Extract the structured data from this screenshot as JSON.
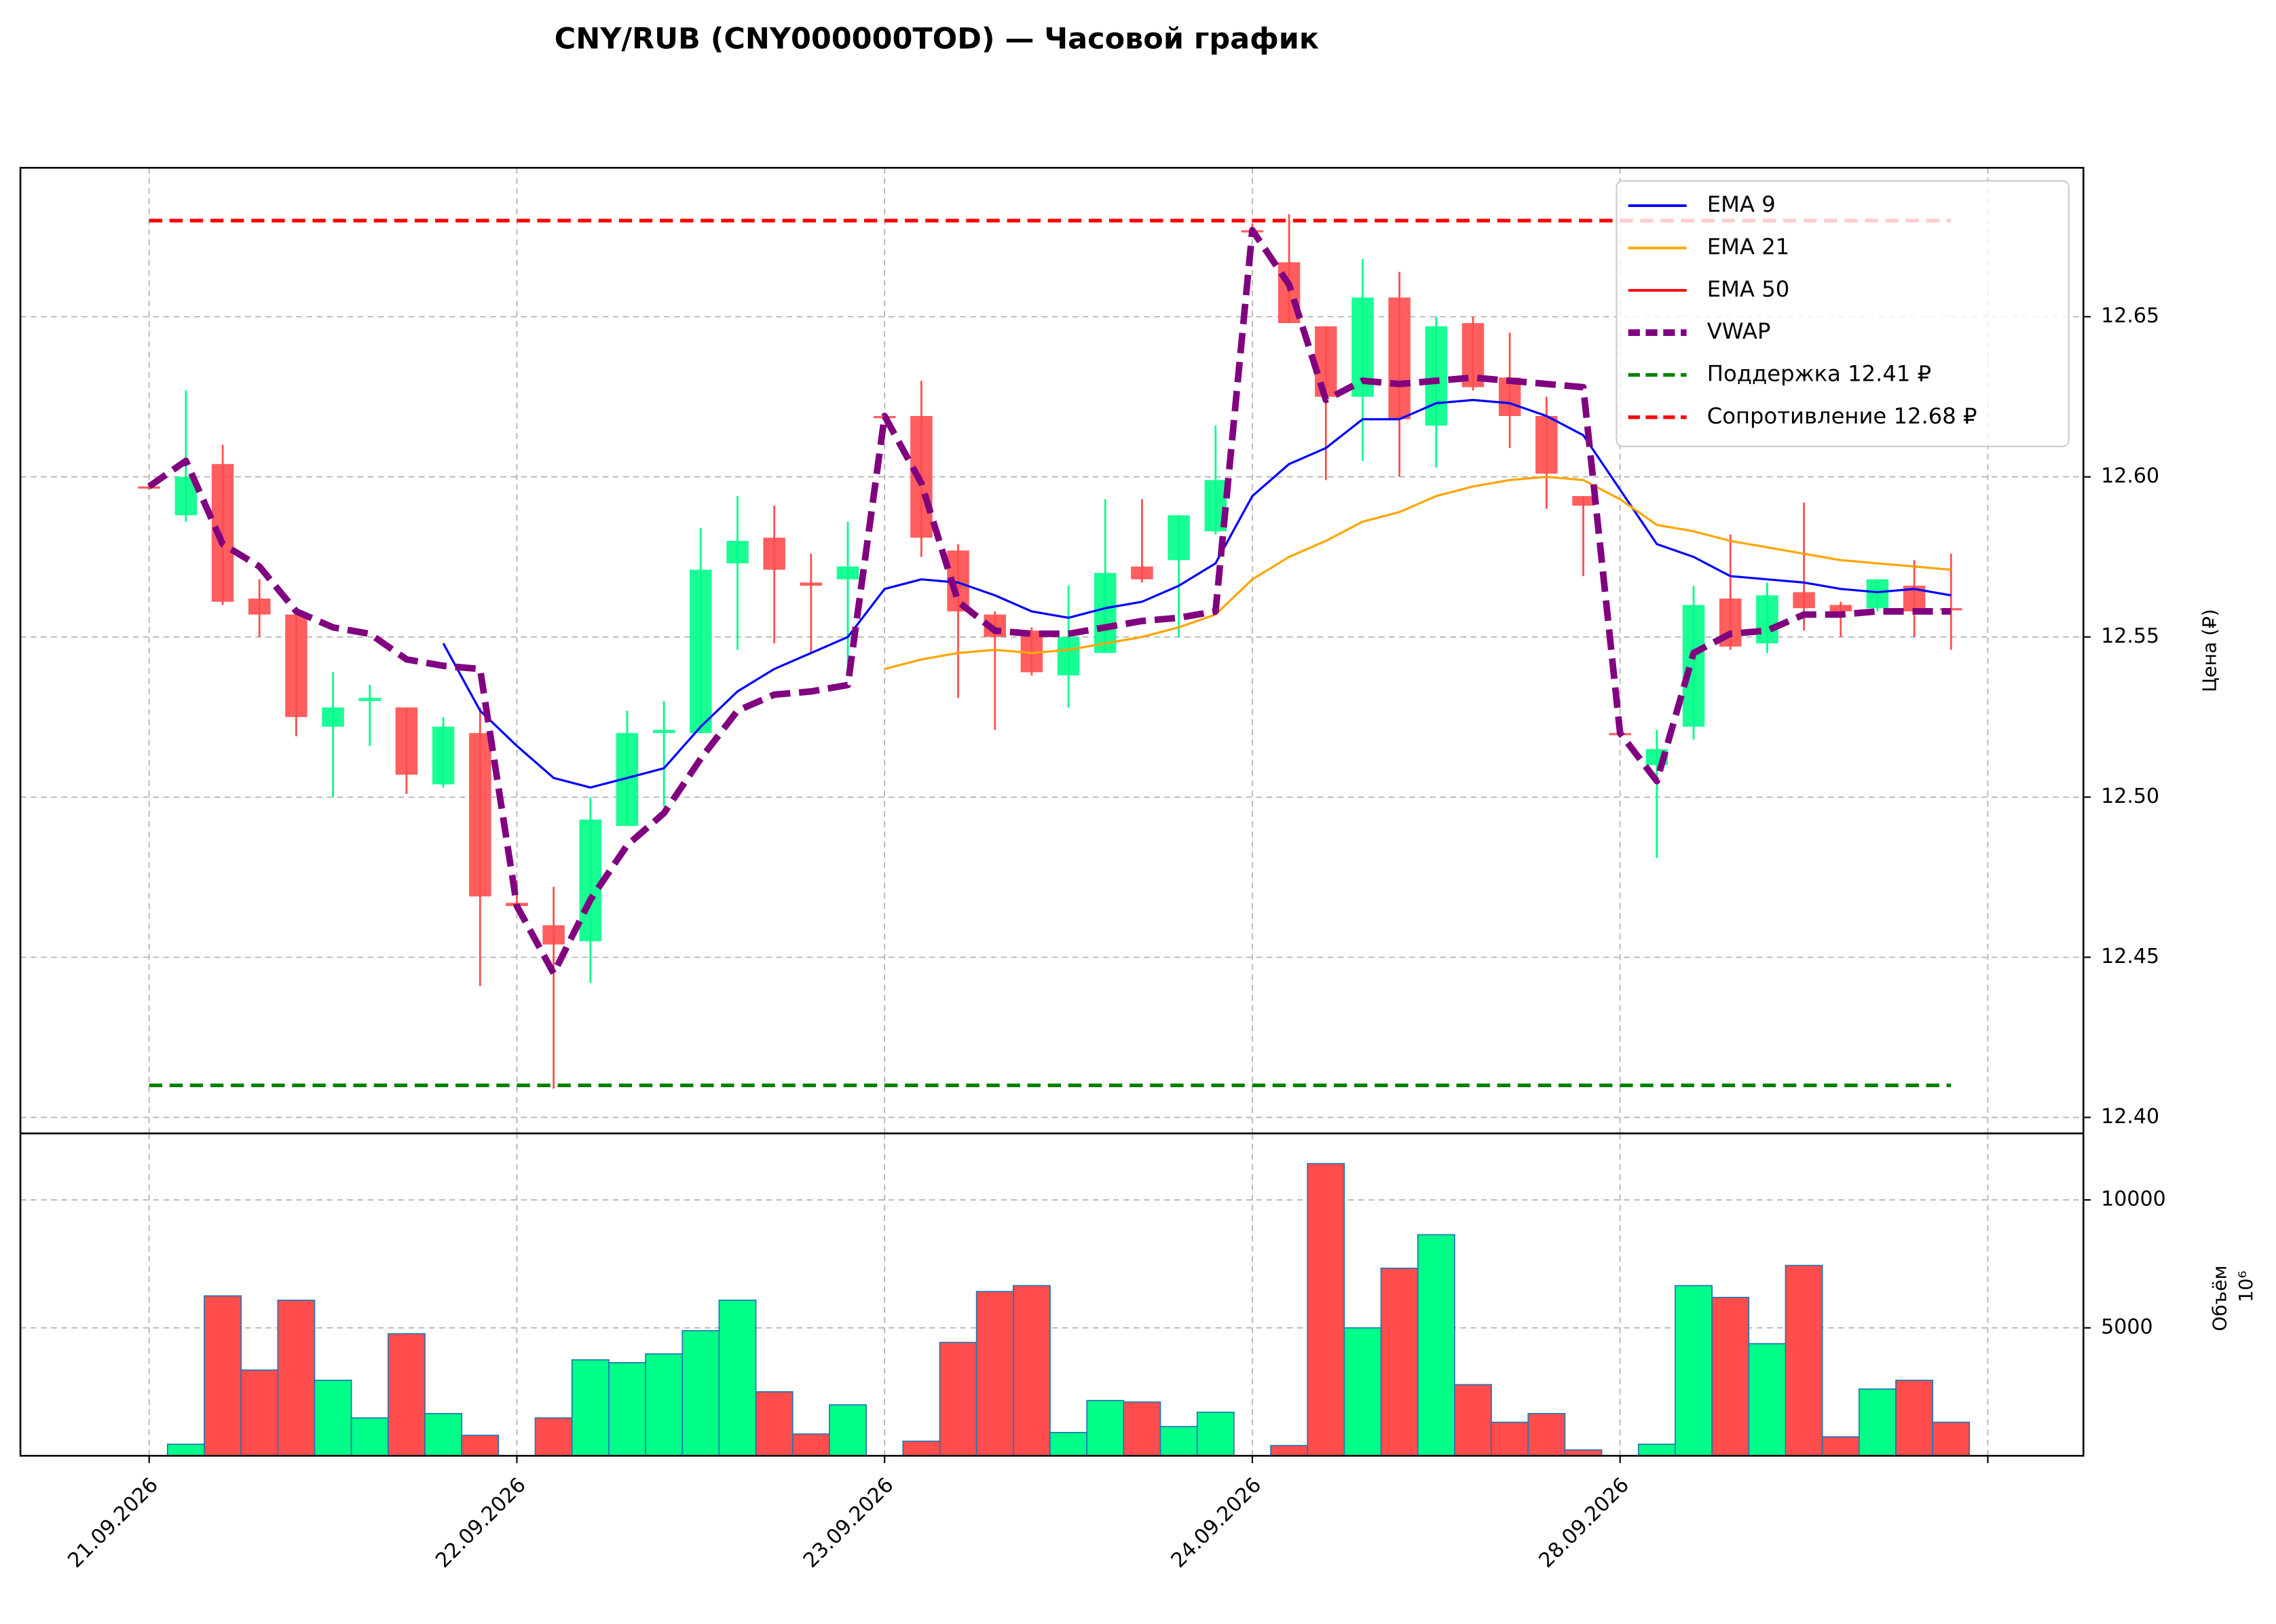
{
  "chart_data": [
    {
      "type": "candlestick",
      "title": "CNY/RUB (CNY000000TOD) — Часовой график",
      "ylabel": "Цена (₽)",
      "categories": [
        "21.09.2026",
        null,
        null,
        null,
        null,
        null,
        null,
        null,
        null,
        null,
        "22.09.2026",
        null,
        null,
        null,
        null,
        null,
        null,
        null,
        null,
        null,
        "23.09.2026",
        null,
        null,
        null,
        null,
        null,
        null,
        null,
        null,
        null,
        "24.09.2026",
        null,
        null,
        null,
        null,
        null,
        null,
        null,
        null,
        null,
        "28.09.2026",
        null,
        null,
        null,
        null,
        null,
        null,
        null,
        null,
        null
      ],
      "xlim": [
        -3.5,
        52.6
      ],
      "xticks": [
        0,
        10,
        20,
        30,
        40,
        50
      ],
      "ylim": [
        12.395,
        12.6965
      ],
      "yticks": [
        {
          "value": 12.4,
          "label": "12.40"
        },
        12.45,
        {
          "value": 12.5,
          "label": "12.50"
        },
        12.55,
        {
          "value": 12.6,
          "label": "12.60"
        },
        12.65
      ],
      "grid": true,
      "up_color": "#00ff88",
      "down_color": "#ff4d4d",
      "open": [
        12.597,
        12.588,
        12.604,
        12.562,
        12.557,
        12.522,
        12.53,
        12.528,
        12.504,
        12.52,
        12.467,
        12.46,
        12.455,
        12.491,
        12.52,
        12.52,
        12.573,
        12.581,
        12.567,
        12.568,
        12.619,
        12.619,
        12.577,
        12.557,
        12.552,
        12.538,
        12.545,
        12.572,
        12.574,
        12.583,
        12.677,
        12.667,
        12.647,
        12.625,
        12.656,
        12.616,
        12.648,
        12.631,
        12.619,
        12.594,
        12.52,
        12.51,
        12.522,
        12.562,
        12.548,
        12.564,
        12.56,
        12.559,
        12.566,
        12.559
      ],
      "high": [
        12.598,
        12.627,
        12.61,
        12.568,
        12.557,
        12.539,
        12.535,
        12.528,
        12.525,
        12.528,
        12.474,
        12.472,
        12.5,
        12.527,
        12.53,
        12.584,
        12.594,
        12.591,
        12.576,
        12.586,
        12.62,
        12.63,
        12.579,
        12.558,
        12.553,
        12.566,
        12.593,
        12.593,
        12.588,
        12.616,
        12.679,
        12.682,
        12.647,
        12.668,
        12.664,
        12.65,
        12.65,
        12.645,
        12.625,
        12.594,
        12.521,
        12.521,
        12.566,
        12.582,
        12.567,
        12.592,
        12.561,
        12.568,
        12.574,
        12.576
      ],
      "low": [
        12.596,
        12.586,
        12.56,
        12.55,
        12.519,
        12.5,
        12.516,
        12.501,
        12.503,
        12.441,
        12.465,
        12.409,
        12.442,
        12.491,
        12.497,
        12.52,
        12.546,
        12.548,
        12.545,
        12.54,
        12.618,
        12.575,
        12.531,
        12.521,
        12.538,
        12.528,
        12.545,
        12.567,
        12.55,
        12.582,
        12.676,
        12.648,
        12.599,
        12.605,
        12.6,
        12.603,
        12.627,
        12.609,
        12.59,
        12.569,
        12.519,
        12.481,
        12.518,
        12.546,
        12.545,
        12.552,
        12.55,
        12.558,
        12.55,
        12.546
      ],
      "close": [
        12.597,
        12.6,
        12.561,
        12.557,
        12.525,
        12.528,
        12.531,
        12.507,
        12.522,
        12.469,
        12.466,
        12.454,
        12.493,
        12.52,
        12.521,
        12.571,
        12.58,
        12.571,
        12.566,
        12.572,
        12.619,
        12.581,
        12.558,
        12.55,
        12.539,
        12.55,
        12.57,
        12.568,
        12.588,
        12.599,
        12.677,
        12.648,
        12.625,
        12.656,
        12.618,
        12.647,
        12.628,
        12.619,
        12.601,
        12.591,
        12.52,
        12.515,
        12.56,
        12.547,
        12.563,
        12.559,
        12.558,
        12.568,
        12.558,
        12.559
      ],
      "series": [
        {
          "name": "EMA 9",
          "color": "#0000ff",
          "values": [
            null,
            null,
            null,
            null,
            null,
            null,
            null,
            null,
            12.548,
            12.527,
            12.516,
            12.506,
            12.503,
            12.506,
            12.509,
            12.522,
            12.533,
            12.54,
            12.545,
            12.55,
            12.565,
            12.568,
            12.567,
            12.563,
            12.558,
            12.556,
            12.559,
            12.561,
            12.566,
            12.573,
            12.594,
            12.604,
            12.609,
            12.618,
            12.618,
            12.623,
            12.624,
            12.623,
            12.619,
            12.613,
            12.596,
            12.579,
            12.575,
            12.569,
            12.568,
            12.567,
            12.565,
            12.564,
            12.565,
            12.563
          ]
        },
        {
          "name": "EMA 21",
          "color": "#ffa500",
          "values": [
            null,
            null,
            null,
            null,
            null,
            null,
            null,
            null,
            null,
            null,
            null,
            null,
            null,
            null,
            null,
            null,
            null,
            null,
            null,
            null,
            12.54,
            12.543,
            12.545,
            12.546,
            12.545,
            12.546,
            12.548,
            12.55,
            12.553,
            12.557,
            12.568,
            12.575,
            12.58,
            12.586,
            12.589,
            12.594,
            12.597,
            12.599,
            12.6,
            12.599,
            12.593,
            12.585,
            12.583,
            12.58,
            12.578,
            12.576,
            12.574,
            12.573,
            12.572,
            12.571
          ]
        },
        {
          "name": "EMA 50",
          "color": "#ff0000",
          "values": [
            null,
            null,
            null,
            null,
            null,
            null,
            null,
            null,
            null,
            null,
            null,
            null,
            null,
            null,
            null,
            null,
            null,
            null,
            null,
            null,
            null,
            null,
            null,
            null,
            null,
            null,
            null,
            null,
            null,
            null,
            null,
            null,
            null,
            null,
            null,
            null,
            null,
            null,
            null,
            null,
            null,
            null,
            null,
            null,
            null,
            null,
            null,
            null,
            null,
            null
          ]
        },
        {
          "name": "VWAP",
          "color": "#800080",
          "style": "dashed",
          "values": [
            12.597,
            12.605,
            12.579,
            12.572,
            12.558,
            12.553,
            12.551,
            12.543,
            12.541,
            12.54,
            12.466,
            12.445,
            12.468,
            12.485,
            12.495,
            12.512,
            12.527,
            12.532,
            12.533,
            12.535,
            12.619,
            12.598,
            12.561,
            12.552,
            12.551,
            12.551,
            12.553,
            12.555,
            12.556,
            12.558,
            12.677,
            12.66,
            12.624,
            12.63,
            12.629,
            12.63,
            12.631,
            12.63,
            12.629,
            12.628,
            12.52,
            12.505,
            12.545,
            12.551,
            12.552,
            12.557,
            12.557,
            12.558,
            12.558,
            12.558
          ]
        }
      ],
      "hlines": [
        {
          "name": "Поддержка 12.41 ₽",
          "value": 12.41,
          "color": "#008000"
        },
        {
          "name": "Сопротивление 12.68 ₽",
          "value": 12.68,
          "color": "#ff0000"
        }
      ]
    },
    {
      "type": "bar",
      "ylabel": "Объём",
      "offset_label": "10⁶",
      "ylim": [
        0,
        12600
      ],
      "yticks": [
        5000,
        10000
      ],
      "grid": true,
      "values": [
        0,
        450,
        6250,
        3350,
        6080,
        2950,
        1480,
        4770,
        1650,
        800,
        0,
        1480,
        3750,
        3640,
        3980,
        4890,
        6080,
        2500,
        850,
        1990,
        0,
        570,
        4430,
        6420,
        6650,
        910,
        2160,
        2100,
        1140,
        1700,
        0,
        400,
        11420,
        5000,
        7330,
        8640,
        2780,
        1310,
        1650,
        230,
        0,
        450,
        6650,
        6190,
        4380,
        7440,
        740,
        2610,
        2950,
        1310
      ]
    }
  ]
}
